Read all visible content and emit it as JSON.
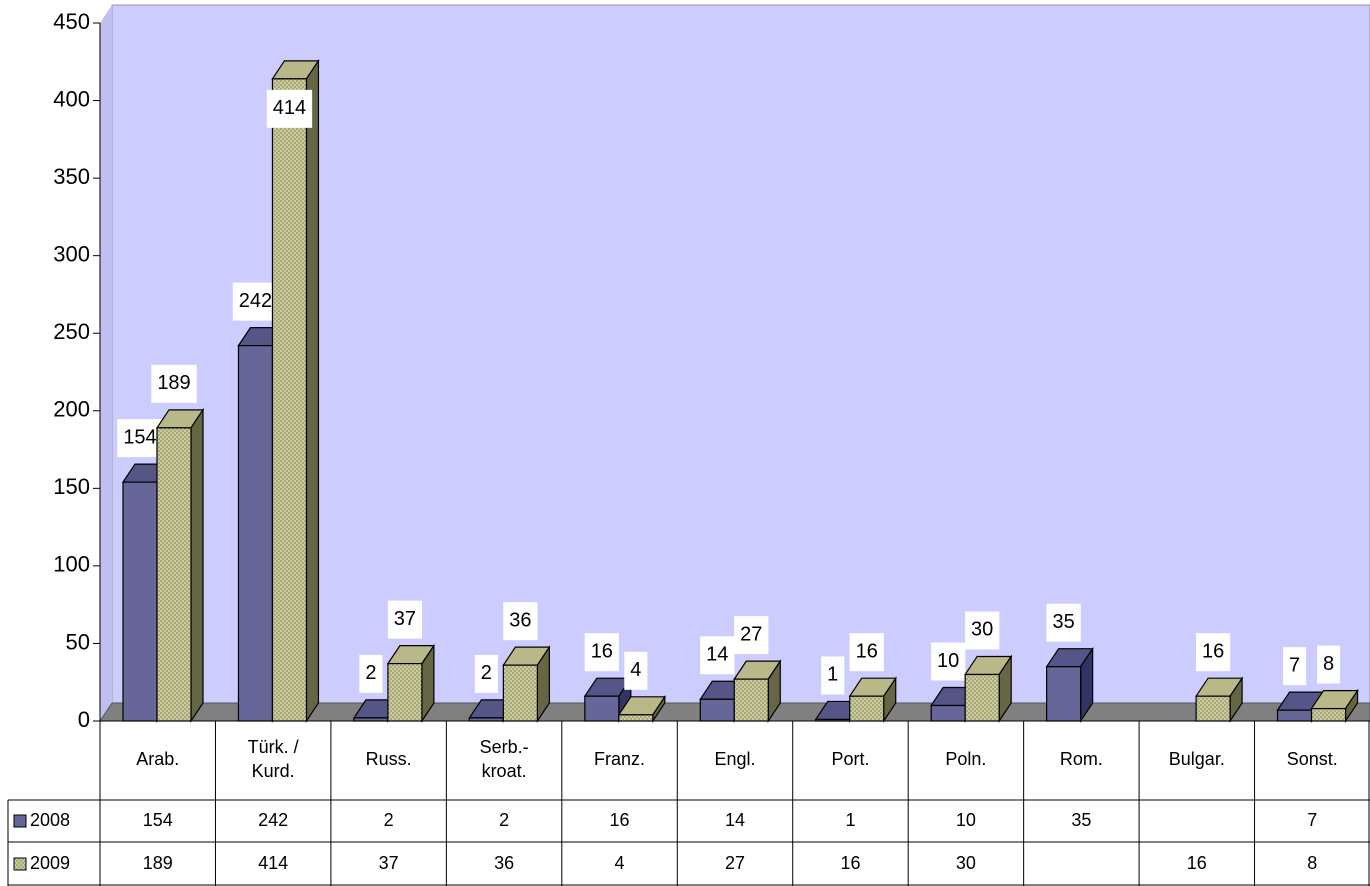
{
  "chart_data": {
    "type": "bar3d",
    "categories": [
      "Arab.",
      "Türk. /\nKurd.",
      "Russ.",
      "Serb.-\nkroat.",
      "Franz.",
      "Engl.",
      "Port.",
      "Poln.",
      "Rom.",
      "Bulgar.",
      "Sonst."
    ],
    "series": [
      {
        "name": "2008",
        "color": "#666699",
        "values": [
          154,
          242,
          2,
          2,
          16,
          14,
          1,
          10,
          35,
          null,
          7
        ]
      },
      {
        "name": "2009",
        "color": "#cccc99",
        "values": [
          189,
          414,
          37,
          36,
          4,
          27,
          16,
          30,
          null,
          16,
          8
        ]
      }
    ],
    "ylim": [
      0,
      450
    ],
    "yticks": [
      0,
      50,
      100,
      150,
      200,
      250,
      300,
      350,
      400,
      450
    ],
    "grid": false,
    "data_table": true
  }
}
